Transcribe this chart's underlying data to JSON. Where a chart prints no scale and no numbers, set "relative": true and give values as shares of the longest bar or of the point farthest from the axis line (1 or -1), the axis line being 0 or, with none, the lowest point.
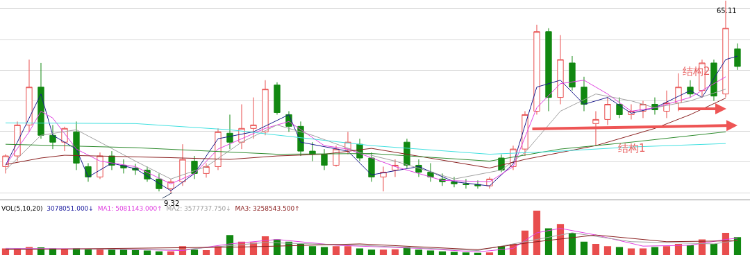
{
  "chart_data": [
    {
      "type": "candlestick",
      "categories": [
        null,
        null,
        null,
        null,
        null,
        null,
        null,
        null,
        null,
        null,
        null,
        null,
        null,
        null,
        null,
        null,
        null,
        null,
        null,
        null,
        null,
        null,
        null,
        null,
        null,
        null,
        null,
        null,
        null,
        null,
        null,
        null,
        null,
        null,
        null,
        null,
        null,
        null,
        null,
        null,
        null,
        null,
        null,
        null,
        null,
        null,
        null,
        null,
        null,
        null,
        null,
        null,
        null,
        null,
        null,
        null,
        null,
        null,
        null,
        null,
        null,
        null,
        null
      ],
      "ohlc": [
        [
          16.9,
          20.5,
          14.9,
          20.0
        ],
        [
          20.0,
          30.0,
          18.5,
          29.0
        ],
        [
          29.0,
          48.0,
          27.0,
          40.0
        ],
        [
          40.0,
          47.0,
          25.0,
          26.0
        ],
        [
          26.0,
          29.0,
          22.0,
          24.0
        ],
        [
          24.0,
          28.5,
          21.4,
          28.0
        ],
        [
          27.0,
          30.0,
          15.9,
          17.9
        ],
        [
          16.9,
          17.9,
          12.5,
          13.9
        ],
        [
          13.9,
          21.0,
          13.3,
          20.0
        ],
        [
          20.0,
          21.4,
          15.9,
          17.3
        ],
        [
          17.3,
          19.0,
          14.9,
          16.5
        ],
        [
          16.5,
          17.7,
          14.5,
          15.9
        ],
        [
          15.9,
          16.9,
          12.5,
          13.3
        ],
        [
          13.3,
          14.9,
          9.7,
          10.5
        ],
        [
          10.5,
          13.3,
          9.32,
          12.5
        ],
        [
          12.5,
          23.4,
          11.3,
          19.0
        ],
        [
          18.5,
          20.0,
          13.3,
          14.9
        ],
        [
          14.9,
          17.9,
          13.7,
          16.9
        ],
        [
          16.9,
          28.0,
          15.9,
          27.0
        ],
        [
          26.6,
          32.0,
          22.0,
          24.0
        ],
        [
          24.0,
          35.0,
          22.0,
          28.0
        ],
        [
          28.0,
          37.0,
          25.0,
          29.0
        ],
        [
          27.0,
          42.0,
          26.0,
          39.4
        ],
        [
          40.6,
          41.4,
          32.0,
          32.6
        ],
        [
          32.0,
          33.0,
          27.0,
          28.6
        ],
        [
          28.6,
          30.0,
          20.0,
          21.4
        ],
        [
          21.4,
          24.0,
          18.5,
          20.5
        ],
        [
          20.5,
          22.0,
          15.9,
          17.3
        ],
        [
          17.3,
          23.0,
          16.9,
          22.0
        ],
        [
          22.0,
          27.0,
          20.5,
          24.0
        ],
        [
          23.4,
          25.0,
          18.5,
          19.4
        ],
        [
          19.4,
          21.0,
          12.5,
          13.9
        ],
        [
          13.9,
          16.9,
          9.7,
          15.3
        ],
        [
          15.9,
          19.0,
          13.9,
          17.3
        ],
        [
          24.0,
          25.0,
          16.5,
          17.3
        ],
        [
          17.3,
          19.0,
          13.9,
          15.3
        ],
        [
          15.3,
          17.9,
          12.5,
          13.9
        ],
        [
          13.3,
          14.9,
          11.3,
          12.5
        ],
        [
          12.5,
          13.9,
          10.9,
          11.9
        ],
        [
          11.9,
          13.3,
          10.5,
          11.7
        ],
        [
          11.7,
          12.9,
          10.5,
          11.3
        ],
        [
          11.3,
          13.9,
          10.5,
          13.3
        ],
        [
          19.4,
          20.4,
          15.3,
          15.9
        ],
        [
          16.9,
          23.0,
          15.9,
          22.0
        ],
        [
          22.0,
          33.0,
          20.0,
          32.0
        ],
        [
          33.0,
          58.1,
          32.0,
          56.1
        ],
        [
          56.1,
          57.1,
          33.0,
          37.0
        ],
        [
          37.0,
          55.1,
          35.0,
          48.0
        ],
        [
          47.0,
          49.0,
          39.0,
          40.0
        ],
        [
          40.0,
          43.0,
          33.0,
          35.0
        ],
        [
          29.4,
          33.0,
          23.0,
          30.6
        ],
        [
          30.6,
          37.0,
          29.0,
          35.0
        ],
        [
          35.0,
          37.0,
          31.0,
          32.0
        ],
        [
          32.0,
          35.0,
          30.6,
          33.0
        ],
        [
          33.0,
          36.0,
          31.0,
          35.0
        ],
        [
          35.0,
          37.0,
          32.0,
          33.4
        ],
        [
          33.0,
          39.0,
          31.0,
          35.4
        ],
        [
          35.4,
          44.0,
          33.0,
          40.0
        ],
        [
          40.0,
          42.0,
          37.0,
          38.0
        ],
        [
          39.0,
          48.0,
          37.0,
          47.0
        ],
        [
          47.0,
          48.0,
          36.0,
          37.4
        ],
        [
          38.0,
          65.11,
          37.0,
          57.1
        ],
        [
          51.1,
          52.7,
          45.0,
          46.0
        ]
      ],
      "series": [
        {
          "type": "line",
          "color": "#1a1a8c",
          "values": [
            17.3,
            24.0,
            null,
            38.0,
            26.0,
            null,
            22.0,
            13.9,
            null,
            17.9,
            null,
            16.3,
            null,
            null,
            9.9,
            null,
            14.9,
            null,
            25.0,
            null,
            null,
            27.0,
            null,
            null,
            32.0,
            24.0,
            null,
            null,
            null,
            21.4,
            null,
            14.5,
            null,
            null,
            null,
            16.9,
            null,
            null,
            12.5,
            null,
            null,
            11.3,
            null,
            17.7,
            null,
            40.0,
            null,
            42.0,
            null,
            35.0,
            null,
            37.0,
            null,
            32.4,
            null,
            34.0,
            null,
            null,
            39.0,
            37.0,
            null,
            48.0,
            49.0
          ]
        },
        {
          "type": "line",
          "color": "#e040e0",
          "values": [
            17.3,
            null,
            27.0,
            33.0,
            31.0,
            null,
            22.0,
            null,
            18.5,
            null,
            null,
            16.9,
            null,
            null,
            11.9,
            null,
            14.9,
            null,
            22.0,
            null,
            null,
            null,
            28.0,
            null,
            30.0,
            null,
            null,
            23.0,
            null,
            22.0,
            null,
            null,
            null,
            16.9,
            null,
            null,
            null,
            12.9,
            null,
            null,
            null,
            12.5,
            null,
            16.9,
            null,
            34.0,
            null,
            41.0,
            null,
            42.0,
            null,
            38.0,
            null,
            33.0,
            null,
            34.0,
            null,
            null,
            37.0,
            null,
            null,
            43.0,
            null
          ]
        },
        {
          "type": "line",
          "color": "#a0a0a0",
          "values": [
            15.9,
            null,
            null,
            26.0,
            null,
            null,
            27.6,
            null,
            24.0,
            null,
            null,
            18.5,
            null,
            null,
            13.3,
            null,
            null,
            16.9,
            null,
            null,
            24.0,
            null,
            null,
            29.0,
            null,
            null,
            26.0,
            null,
            null,
            null,
            21.0,
            null,
            null,
            18.5,
            null,
            null,
            null,
            null,
            13.3,
            null,
            null,
            null,
            15.9,
            null,
            21.0,
            null,
            null,
            33.0,
            null,
            null,
            38.0,
            null,
            null,
            36.0,
            null,
            34.0,
            null,
            null,
            36.0,
            null,
            null,
            39.4,
            null
          ]
        },
        {
          "type": "line",
          "color": "#8b2020",
          "values": [
            17.5,
            null,
            null,
            19.4,
            null,
            20.2,
            null,
            null,
            null,
            null,
            null,
            null,
            null,
            null,
            19.5,
            null,
            null,
            null,
            null,
            19.0,
            null,
            null,
            null,
            20.0,
            null,
            null,
            null,
            20.5,
            null,
            null,
            null,
            22.2,
            null,
            null,
            null,
            null,
            null,
            null,
            null,
            null,
            null,
            16.5,
            null,
            null,
            19.0,
            null,
            null,
            null,
            null,
            null,
            23.0,
            null,
            null,
            null,
            null,
            28.0,
            null,
            null,
            32.0,
            null,
            null,
            36.8,
            null
          ]
        },
        {
          "type": "line",
          "color": "#2e8b2e",
          "values": [
            23.4,
            null,
            null,
            null,
            null,
            null,
            null,
            null,
            null,
            null,
            null,
            22.4,
            null,
            null,
            null,
            null,
            null,
            null,
            null,
            null,
            null,
            null,
            null,
            20.5,
            null,
            null,
            null,
            null,
            null,
            null,
            null,
            20.7,
            null,
            null,
            null,
            null,
            null,
            null,
            null,
            null,
            null,
            18.5,
            null,
            null,
            null,
            null,
            null,
            22.0,
            null,
            null,
            null,
            null,
            null,
            24.0,
            null,
            null,
            null,
            null,
            null,
            null,
            null,
            27.0,
            null
          ]
        },
        {
          "type": "line",
          "color": "#40e0e0",
          "values": [
            29.6,
            null,
            null,
            null,
            null,
            null,
            null,
            null,
            null,
            null,
            null,
            29.4,
            null,
            null,
            null,
            null,
            null,
            null,
            null,
            27.6,
            null,
            null,
            null,
            null,
            null,
            null,
            null,
            null,
            null,
            null,
            null,
            23.0,
            null,
            null,
            null,
            null,
            null,
            null,
            null,
            null,
            null,
            20.5,
            null,
            null,
            null,
            null,
            null,
            21.4,
            null,
            null,
            null,
            null,
            null,
            22.6,
            null,
            null,
            null,
            null,
            null,
            null,
            null,
            23.6,
            null
          ]
        }
      ],
      "annotations": [
        {
          "text": "9.32",
          "y": 9.32
        },
        "65.11",
        "结构1",
        "结构2"
      ],
      "ylim": [
        7.3,
        65.3
      ],
      "yticks": [
        {
          "value": 9.3,
          "label": null
        },
        {
          "value": 18.2,
          "label": null
        },
        {
          "value": 27.1,
          "label": null
        },
        {
          "value": 36.0,
          "label": null
        },
        {
          "value": 44.9,
          "label": null
        },
        {
          "value": 53.8,
          "label": null
        },
        {
          "value": 62.7,
          "label": null
        }
      ],
      "grid": "y",
      "tick_labels": false
    },
    {
      "type": "bar",
      "relative": true,
      "tick_labels": false,
      "categories": [
        null,
        null,
        null,
        null,
        null,
        null,
        null,
        null,
        null,
        null,
        null,
        null,
        null,
        null,
        null,
        null,
        null,
        null,
        null,
        null,
        null,
        null,
        null,
        null,
        null,
        null,
        null,
        null,
        null,
        null,
        null,
        null,
        null,
        null,
        null,
        null,
        null,
        null,
        null,
        null,
        null,
        null,
        null,
        null,
        null,
        null,
        null,
        null,
        null,
        null,
        null,
        null,
        null,
        null,
        null,
        null,
        null,
        null,
        null,
        null,
        null,
        null,
        null
      ],
      "values": [
        0.15,
        0.15,
        0.18,
        0.17,
        0.15,
        0.14,
        0.15,
        0.13,
        0.13,
        0.12,
        0.12,
        0.11,
        0.1,
        0.08,
        0.08,
        0.2,
        0.12,
        0.11,
        0.2,
        0.45,
        0.3,
        0.28,
        0.42,
        0.35,
        0.3,
        0.25,
        0.2,
        0.18,
        0.2,
        0.2,
        0.15,
        0.12,
        0.12,
        0.13,
        0.18,
        0.12,
        0.1,
        0.08,
        0.07,
        0.06,
        0.05,
        0.06,
        0.2,
        0.25,
        0.55,
        1.0,
        0.6,
        0.7,
        0.5,
        0.3,
        0.25,
        0.2,
        0.18,
        0.15,
        0.15,
        0.18,
        0.2,
        0.25,
        0.22,
        0.35,
        0.25,
        0.5,
        0.4
      ],
      "colors": [
        "#e84d4d",
        "#e84d4d",
        "#e84d4d",
        "#118811",
        "#118811",
        "#e84d4d",
        "#118811",
        "#118811",
        "#e84d4d",
        "#118811",
        "#118811",
        "#118811",
        "#118811",
        "#118811",
        "#e84d4d",
        "#e84d4d",
        "#118811",
        "#e84d4d",
        "#e84d4d",
        "#118811",
        "#e84d4d",
        "#e84d4d",
        "#e84d4d",
        "#118811",
        "#118811",
        "#118811",
        "#118811",
        "#118811",
        "#e84d4d",
        "#e84d4d",
        "#118811",
        "#118811",
        "#e84d4d",
        "#e84d4d",
        "#118811",
        "#118811",
        "#118811",
        "#118811",
        "#118811",
        "#118811",
        "#118811",
        "#e84d4d",
        "#118811",
        "#e84d4d",
        "#e84d4d",
        "#e84d4d",
        "#118811",
        "#e84d4d",
        "#118811",
        "#118811",
        "#e84d4d",
        "#e84d4d",
        "#118811",
        "#e84d4d",
        "#e84d4d",
        "#118811",
        "#e84d4d",
        "#e84d4d",
        "#118811",
        "#e84d4d",
        "#118811",
        "#e84d4d",
        "#118811"
      ],
      "series": [
        {
          "type": "line",
          "name": "MA1: 5081143.000↑",
          "color": "#e040e0",
          "values": [
            0.15,
            null,
            null,
            null,
            null,
            null,
            null,
            null,
            null,
            null,
            0.13,
            null,
            null,
            null,
            null,
            0.1,
            null,
            null,
            null,
            0.25,
            null,
            null,
            null,
            0.35,
            null,
            null,
            null,
            null,
            0.22,
            null,
            null,
            null,
            null,
            null,
            null,
            0.15,
            null,
            null,
            null,
            null,
            0.07,
            null,
            null,
            0.15,
            null,
            0.5,
            null,
            0.6,
            null,
            null,
            0.45,
            null,
            null,
            null,
            0.2,
            null,
            null,
            null,
            0.22,
            null,
            null,
            0.35,
            0.38
          ]
        },
        {
          "type": "line",
          "name": "MA2: 3577737.750↓",
          "color": "#a0a0a0",
          "values": [
            0.14,
            null,
            null,
            null,
            null,
            null,
            null,
            null,
            null,
            null,
            null,
            null,
            null,
            null,
            null,
            0.12,
            null,
            null,
            null,
            null,
            null,
            null,
            0.28,
            null,
            null,
            null,
            null,
            null,
            null,
            null,
            0.22,
            null,
            null,
            null,
            null,
            null,
            null,
            null,
            null,
            null,
            0.1,
            null,
            null,
            null,
            0.3,
            null,
            null,
            null,
            0.5,
            null,
            null,
            null,
            null,
            0.3,
            null,
            null,
            null,
            null,
            null,
            null,
            0.25,
            null,
            0.33
          ]
        },
        {
          "type": "line",
          "name": "MA3: 3258543.500↑",
          "color": "#8b2020",
          "values": [
            0.12,
            null,
            null,
            null,
            null,
            null,
            null,
            null,
            null,
            null,
            null,
            null,
            null,
            null,
            null,
            null,
            null,
            null,
            null,
            null,
            0.18,
            null,
            null,
            null,
            null,
            null,
            null,
            null,
            null,
            null,
            0.25,
            null,
            null,
            null,
            null,
            null,
            null,
            null,
            null,
            null,
            0.12,
            null,
            null,
            null,
            null,
            0.3,
            null,
            null,
            null,
            null,
            0.45,
            null,
            null,
            null,
            null,
            null,
            0.3,
            null,
            null,
            null,
            null,
            null,
            0.32
          ]
        }
      ],
      "annotations": [
        "VOL(5,10,20)",
        "3078051.000↓"
      ]
    }
  ]
}
